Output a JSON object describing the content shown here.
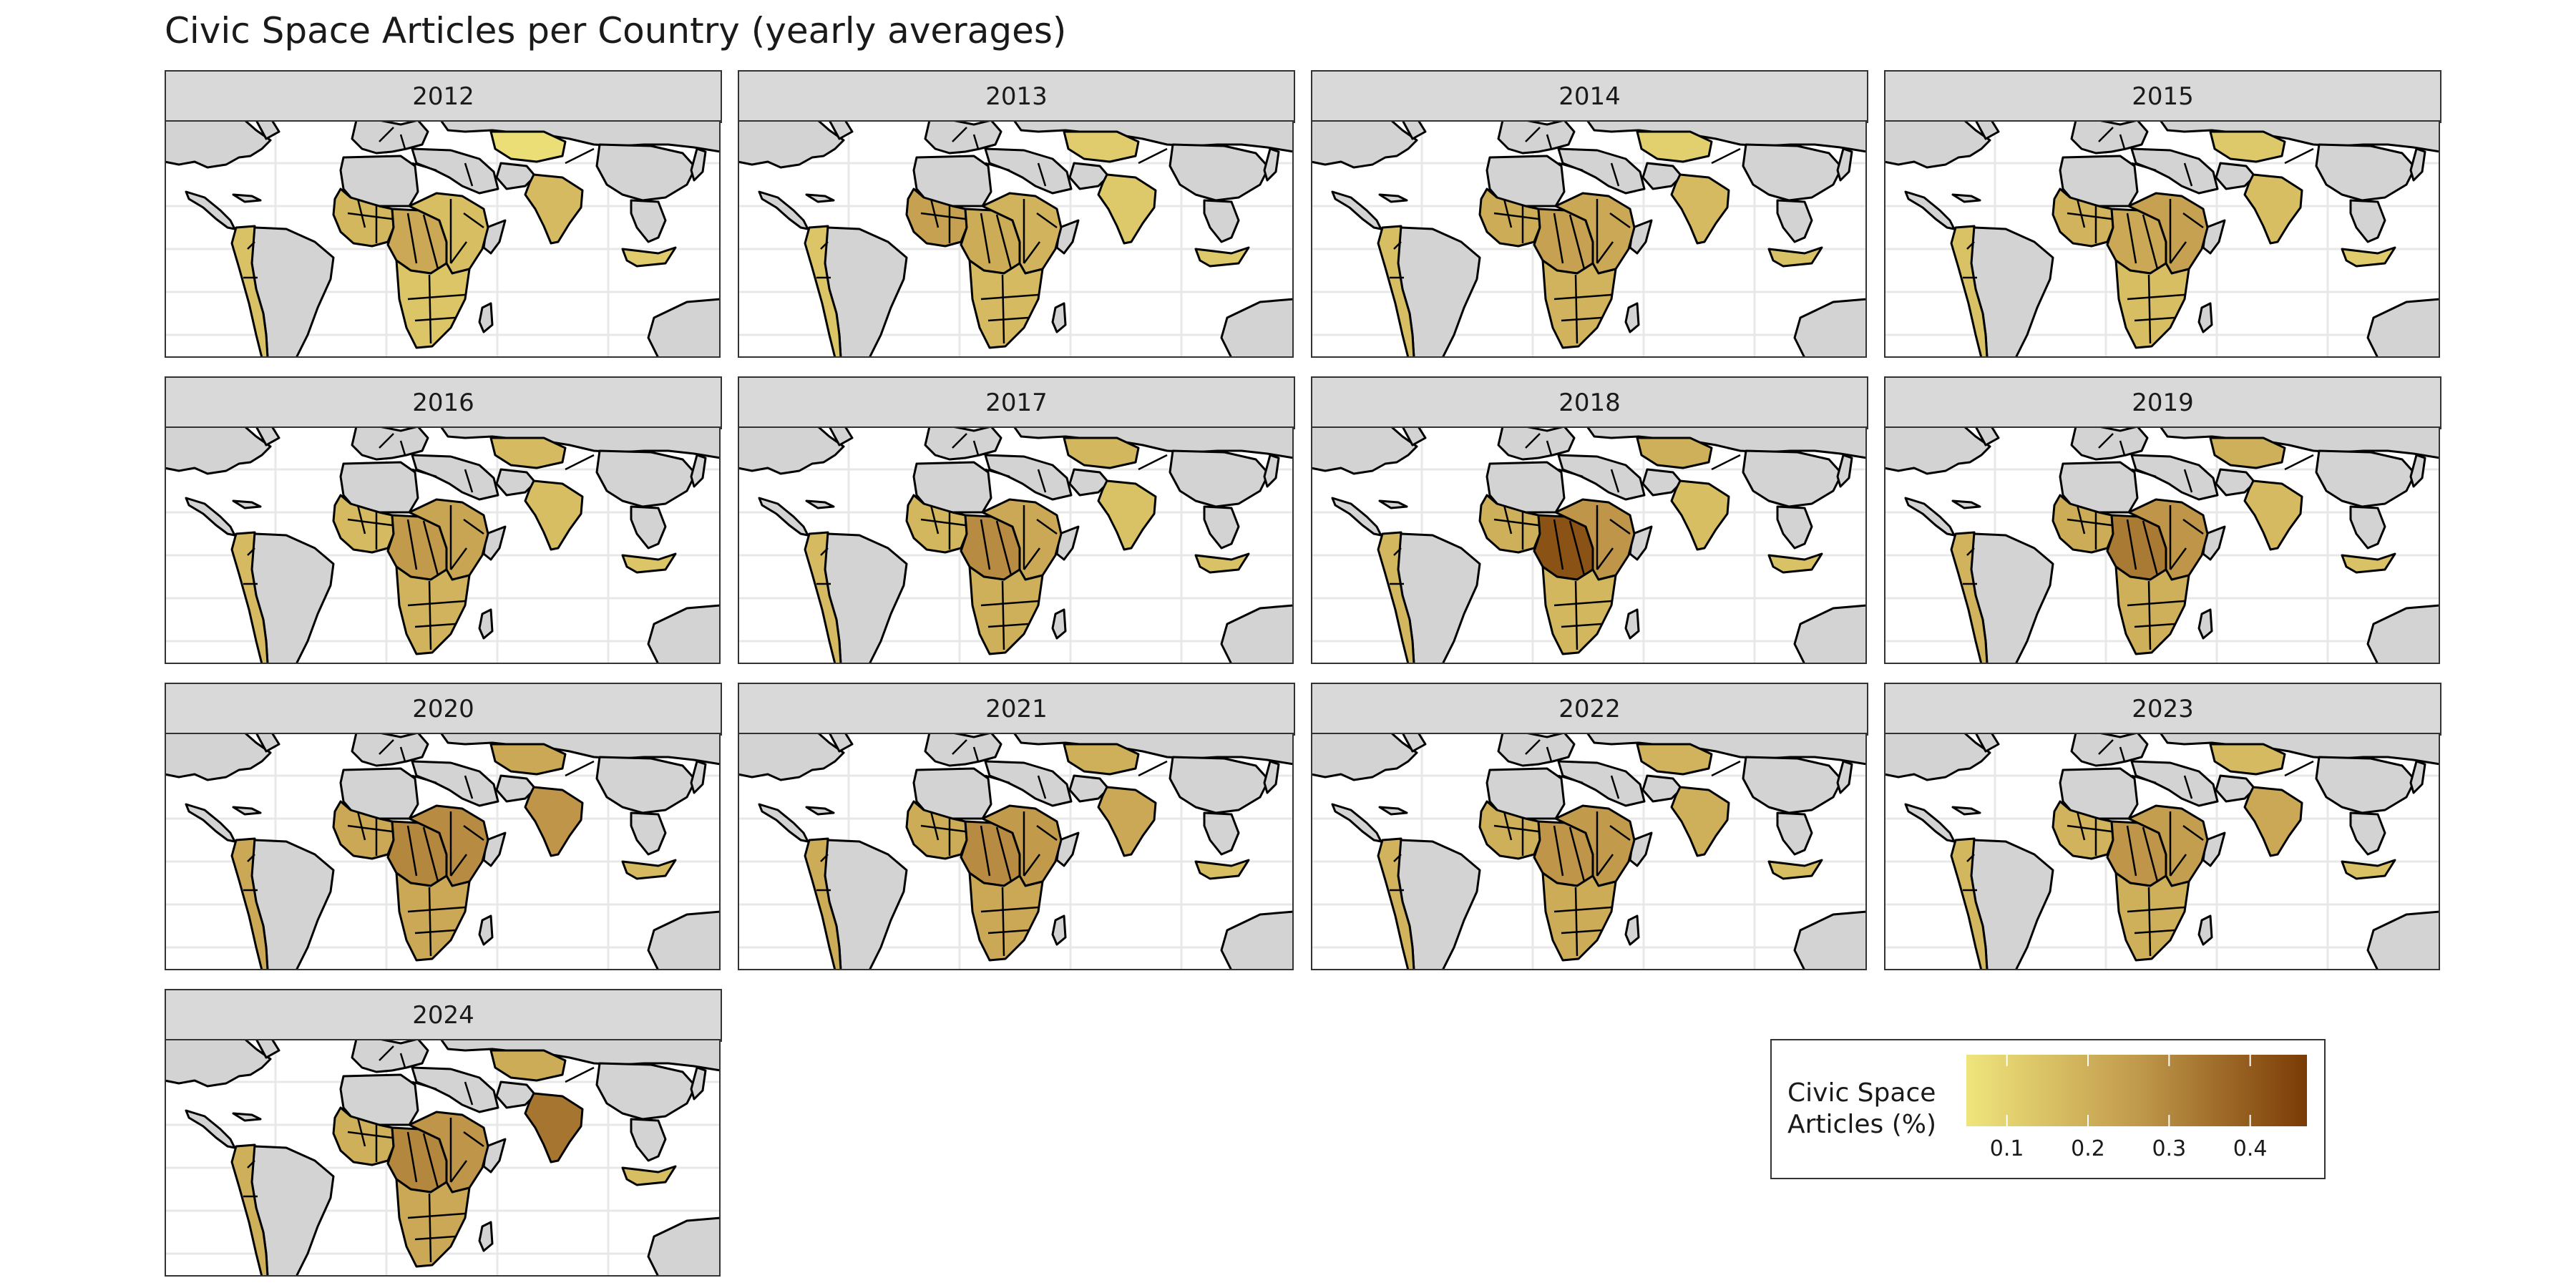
{
  "title": "Civic Space Articles per Country (yearly averages)",
  "legend": {
    "title_lines": [
      "Civic Space",
      "Articles (%)"
    ],
    "ticks": [
      {
        "label": "0.1",
        "value": 0.1
      },
      {
        "label": "0.2",
        "value": 0.2
      },
      {
        "label": "0.3",
        "value": 0.3
      },
      {
        "label": "0.4",
        "value": 0.4
      }
    ],
    "range": [
      0.05,
      0.47
    ],
    "color_low": "#efe57c",
    "color_mid": "#c19a4c",
    "color_high": "#7a3b05"
  },
  "colors": {
    "no_data": "#d3d3d3",
    "ocean": "#ffffff",
    "border": "#000000",
    "grid": "#e8e8e8"
  },
  "chart_data": {
    "type": "choropleth",
    "facets": [
      {
        "year": "2012",
        "values": {
          "west_africa": 0.18,
          "central_africa": 0.22,
          "east_africa": 0.16,
          "southern_africa": 0.14,
          "india": 0.17,
          "kazakhstan": 0.07,
          "andes": 0.15,
          "southeast_asia": 0.12
        }
      },
      {
        "year": "2013",
        "values": {
          "west_africa": 0.24,
          "central_africa": 0.21,
          "east_africa": 0.19,
          "southern_africa": 0.17,
          "india": 0.13,
          "kazakhstan": 0.12,
          "andes": 0.14,
          "southeast_asia": 0.13
        }
      },
      {
        "year": "2014",
        "values": {
          "west_africa": 0.21,
          "central_africa": 0.24,
          "east_africa": 0.22,
          "southern_africa": 0.19,
          "india": 0.17,
          "kazakhstan": 0.11,
          "andes": 0.16,
          "southeast_asia": 0.15
        }
      },
      {
        "year": "2015",
        "values": {
          "west_africa": 0.19,
          "central_africa": 0.22,
          "east_africa": 0.24,
          "southern_africa": 0.16,
          "india": 0.16,
          "kazakhstan": 0.13,
          "andes": 0.15,
          "southeast_asia": 0.12
        }
      },
      {
        "year": "2016",
        "values": {
          "west_africa": 0.17,
          "central_africa": 0.26,
          "east_africa": 0.23,
          "southern_africa": 0.19,
          "india": 0.16,
          "kazakhstan": 0.17,
          "andes": 0.17,
          "southeast_asia": 0.14
        }
      },
      {
        "year": "2017",
        "values": {
          "west_africa": 0.18,
          "central_africa": 0.29,
          "east_africa": 0.22,
          "southern_africa": 0.2,
          "india": 0.15,
          "kazakhstan": 0.18,
          "andes": 0.17,
          "southeast_asia": 0.15
        }
      },
      {
        "year": "2018",
        "values": {
          "west_africa": 0.2,
          "central_africa": 0.42,
          "east_africa": 0.27,
          "southern_africa": 0.18,
          "india": 0.16,
          "kazakhstan": 0.2,
          "andes": 0.18,
          "southeast_asia": 0.15
        }
      },
      {
        "year": "2019",
        "values": {
          "west_africa": 0.21,
          "central_africa": 0.33,
          "east_africa": 0.27,
          "southern_africa": 0.2,
          "india": 0.17,
          "kazakhstan": 0.2,
          "andes": 0.19,
          "southeast_asia": 0.15
        }
      },
      {
        "year": "2020",
        "values": {
          "west_africa": 0.22,
          "central_africa": 0.3,
          "east_africa": 0.29,
          "southern_africa": 0.22,
          "india": 0.27,
          "kazakhstan": 0.22,
          "andes": 0.22,
          "southeast_asia": 0.17
        }
      },
      {
        "year": "2021",
        "values": {
          "west_africa": 0.21,
          "central_africa": 0.29,
          "east_africa": 0.26,
          "southern_africa": 0.22,
          "india": 0.22,
          "kazakhstan": 0.2,
          "andes": 0.21,
          "southeast_asia": 0.16
        }
      },
      {
        "year": "2022",
        "values": {
          "west_africa": 0.2,
          "central_africa": 0.27,
          "east_africa": 0.26,
          "southern_africa": 0.21,
          "india": 0.2,
          "kazakhstan": 0.19,
          "andes": 0.19,
          "southeast_asia": 0.16
        }
      },
      {
        "year": "2023",
        "values": {
          "west_africa": 0.19,
          "central_africa": 0.27,
          "east_africa": 0.25,
          "southern_africa": 0.2,
          "india": 0.22,
          "kazakhstan": 0.17,
          "andes": 0.18,
          "southeast_asia": 0.15
        }
      },
      {
        "year": "2024",
        "values": {
          "west_africa": 0.2,
          "central_africa": 0.3,
          "east_africa": 0.27,
          "southern_africa": 0.22,
          "india": 0.34,
          "kazakhstan": 0.21,
          "andes": 0.2,
          "southeast_asia": 0.16
        }
      }
    ]
  }
}
